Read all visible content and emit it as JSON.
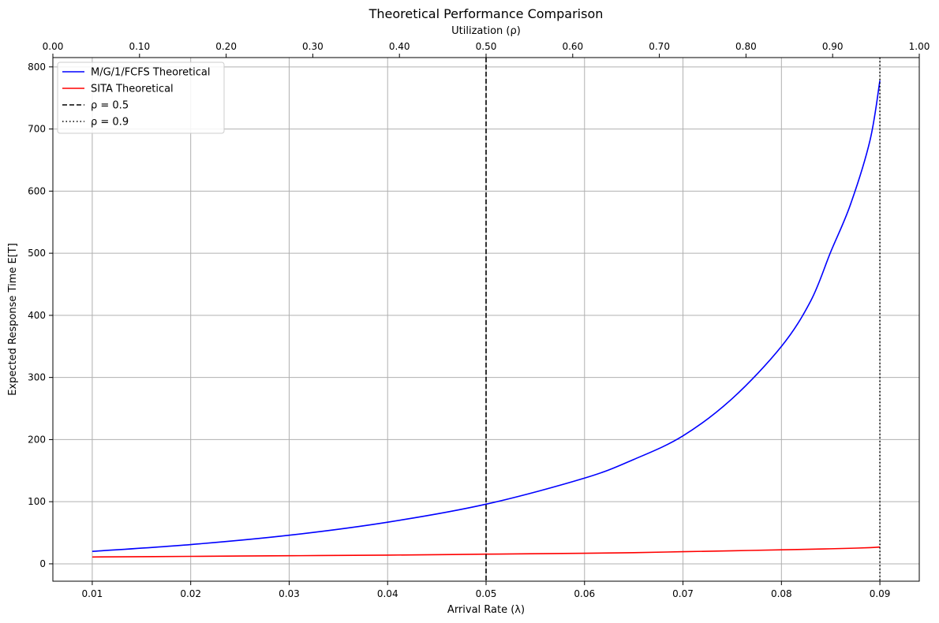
{
  "chart_data": {
    "type": "line",
    "title": "Theoretical Performance Comparison",
    "xlabel": "Arrival Rate (λ)",
    "ylabel": "Expected Response Time E[T]",
    "top_xlabel": "Utilization (ρ)",
    "xlim": [
      0.006,
      0.094
    ],
    "ylim": [
      -28,
      815
    ],
    "top_xlim": [
      0.0,
      1.0
    ],
    "x_ticks": [
      "0.01",
      "0.02",
      "0.03",
      "0.04",
      "0.05",
      "0.06",
      "0.07",
      "0.08",
      "0.09"
    ],
    "y_ticks": [
      "0",
      "100",
      "200",
      "300",
      "400",
      "500",
      "600",
      "700",
      "800"
    ],
    "top_x_ticks": [
      "0.00",
      "0.10",
      "0.20",
      "0.30",
      "0.40",
      "0.50",
      "0.60",
      "0.70",
      "0.80",
      "0.90",
      "1.00"
    ],
    "grid": true,
    "legend_position": "top-left",
    "x": [
      0.01,
      0.02,
      0.03,
      0.04,
      0.05,
      0.06,
      0.065,
      0.07,
      0.075,
      0.08,
      0.083,
      0.085,
      0.087,
      0.089,
      0.09
    ],
    "series": [
      {
        "name": "M/G/1/FCFS Theoretical",
        "color": "#0000ff",
        "style": "solid",
        "values": [
          20,
          31,
          46,
          67,
          96,
          138,
          168,
          206,
          266,
          350,
          424,
          502,
          578,
          682,
          778
        ]
      },
      {
        "name": "SITA Theoretical",
        "color": "#ff0000",
        "style": "solid",
        "values": [
          11,
          12,
          13,
          14,
          15.5,
          17,
          18,
          19.5,
          21,
          22.5,
          23.5,
          24.2,
          25,
          26,
          27
        ]
      }
    ],
    "vlines": [
      {
        "name": "ρ = 0.5",
        "x": 0.05,
        "color": "#000000",
        "style": "dashed"
      },
      {
        "name": "ρ = 0.9",
        "x": 0.09,
        "color": "#000000",
        "style": "dotted"
      }
    ]
  }
}
